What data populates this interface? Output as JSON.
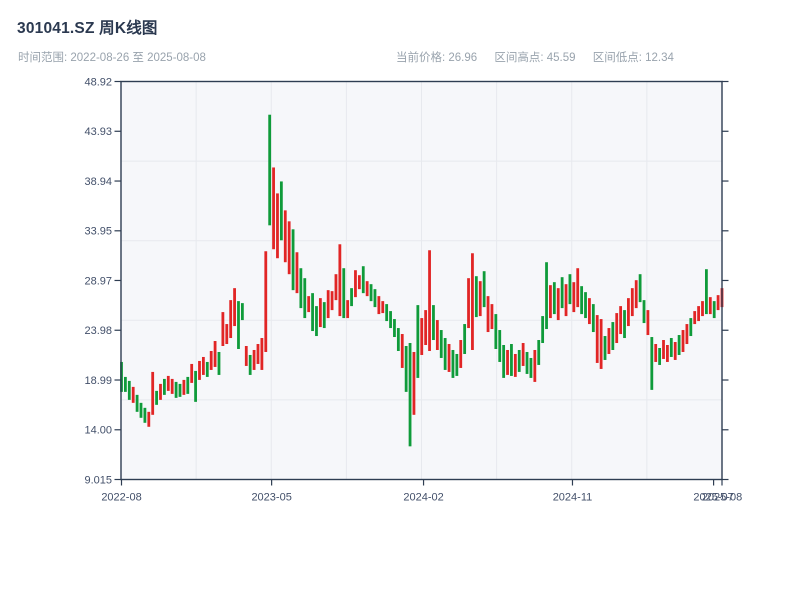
{
  "header": {
    "title": "301041.SZ 周K线图",
    "time_range": "时间范围: 2022-08-26 至 2025-08-08",
    "current_price_label": "当前价格: 26.96",
    "range_high_label": "区间高点: 45.59",
    "range_low_label": "区间低点: 12.34"
  },
  "chart_data": {
    "type": "candlestick",
    "title": "301041.SZ 周K线图",
    "frequency": "weekly",
    "x_start": "2022-08-26",
    "x_end": "2025-08-08",
    "current_price": 26.96,
    "range_high": 45.59,
    "range_low": 12.34,
    "ylim": [
      9.015,
      48.92
    ],
    "grid": "on",
    "colors": {
      "up_red": "#e12525",
      "down_green": "#0f9b3a"
    },
    "y_ticks": [
      {
        "label": "48.92",
        "value": 48.92
      },
      {
        "label": "43.93",
        "value": 43.93
      },
      {
        "label": "38.94",
        "value": 38.94
      },
      {
        "label": "33.95",
        "value": 33.95
      },
      {
        "label": "28.97",
        "value": 28.97
      },
      {
        "label": "23.98",
        "value": 23.98
      },
      {
        "label": "18.99",
        "value": 18.99
      },
      {
        "label": "14.00",
        "value": 14.0
      },
      {
        "label": "9.015",
        "value": 9.015
      }
    ],
    "x_ticks": [
      {
        "label": "2022-08",
        "pos": 0.0
      },
      {
        "label": "2023-05",
        "pos": 0.25
      },
      {
        "label": "2024-02",
        "pos": 0.503
      },
      {
        "label": "2024-11",
        "pos": 0.751
      },
      {
        "label": "2025-07",
        "pos": 0.986
      },
      {
        "label": "2025-08",
        "pos": 1.0
      }
    ],
    "bars": [
      [
        20.8,
        17.8,
        "g"
      ],
      [
        19.3,
        17.8,
        "g"
      ],
      [
        18.9,
        17.0,
        "g"
      ],
      [
        18.3,
        16.7,
        "r"
      ],
      [
        17.5,
        15.8,
        "g"
      ],
      [
        16.7,
        15.2,
        "g"
      ],
      [
        16.2,
        14.7,
        "g"
      ],
      [
        15.8,
        14.3,
        "r"
      ],
      [
        19.8,
        15.5,
        "r"
      ],
      [
        17.9,
        16.5,
        "g"
      ],
      [
        18.6,
        17.0,
        "r"
      ],
      [
        19.1,
        17.5,
        "g"
      ],
      [
        19.4,
        17.9,
        "r"
      ],
      [
        19.1,
        17.6,
        "r"
      ],
      [
        18.8,
        17.2,
        "g"
      ],
      [
        18.6,
        17.3,
        "g"
      ],
      [
        19.0,
        17.5,
        "r"
      ],
      [
        19.3,
        17.6,
        "g"
      ],
      [
        20.6,
        18.7,
        "r"
      ],
      [
        19.9,
        16.8,
        "g"
      ],
      [
        20.9,
        19.0,
        "r"
      ],
      [
        21.3,
        19.5,
        "r"
      ],
      [
        20.8,
        19.3,
        "g"
      ],
      [
        21.9,
        20.0,
        "r"
      ],
      [
        22.9,
        20.3,
        "r"
      ],
      [
        21.8,
        19.5,
        "g"
      ],
      [
        25.8,
        22.4,
        "r"
      ],
      [
        24.6,
        22.6,
        "r"
      ],
      [
        27.0,
        23.2,
        "r"
      ],
      [
        28.2,
        24.4,
        "r"
      ],
      [
        26.9,
        22.1,
        "g"
      ],
      [
        26.7,
        25.0,
        "g"
      ],
      [
        22.4,
        20.4,
        "r"
      ],
      [
        21.5,
        19.5,
        "g"
      ],
      [
        22.0,
        20.0,
        "r"
      ],
      [
        22.6,
        20.6,
        "r"
      ],
      [
        23.2,
        20.0,
        "r"
      ],
      [
        31.9,
        21.8,
        "r"
      ],
      [
        45.59,
        34.5,
        "g"
      ],
      [
        40.3,
        32.1,
        "r"
      ],
      [
        37.7,
        31.2,
        "r"
      ],
      [
        38.9,
        33.0,
        "g"
      ],
      [
        36.0,
        30.8,
        "r"
      ],
      [
        34.9,
        29.6,
        "r"
      ],
      [
        34.1,
        28.0,
        "g"
      ],
      [
        31.8,
        27.7,
        "r"
      ],
      [
        30.2,
        26.2,
        "g"
      ],
      [
        29.2,
        25.2,
        "g"
      ],
      [
        27.4,
        25.8,
        "r"
      ],
      [
        27.7,
        23.9,
        "g"
      ],
      [
        26.4,
        23.4,
        "g"
      ],
      [
        27.2,
        24.3,
        "r"
      ],
      [
        26.8,
        24.2,
        "g"
      ],
      [
        28.0,
        25.2,
        "r"
      ],
      [
        27.9,
        26.0,
        "r"
      ],
      [
        29.6,
        27.0,
        "r"
      ],
      [
        32.6,
        25.4,
        "r"
      ],
      [
        30.2,
        25.2,
        "g"
      ],
      [
        27.0,
        25.2,
        "r"
      ],
      [
        28.2,
        26.4,
        "g"
      ],
      [
        30.0,
        27.3,
        "r"
      ],
      [
        29.5,
        28.1,
        "r"
      ],
      [
        30.4,
        27.7,
        "g"
      ],
      [
        28.9,
        27.4,
        "r"
      ],
      [
        28.6,
        26.9,
        "g"
      ],
      [
        28.1,
        26.3,
        "g"
      ],
      [
        27.4,
        25.6,
        "r"
      ],
      [
        26.9,
        25.7,
        "r"
      ],
      [
        26.6,
        24.9,
        "g"
      ],
      [
        25.9,
        24.2,
        "g"
      ],
      [
        25.1,
        23.3,
        "g"
      ],
      [
        24.2,
        21.9,
        "g"
      ],
      [
        23.6,
        20.2,
        "r"
      ],
      [
        22.4,
        17.8,
        "g"
      ],
      [
        22.7,
        12.34,
        "g"
      ],
      [
        21.8,
        15.5,
        "r"
      ],
      [
        26.5,
        19.2,
        "g"
      ],
      [
        25.2,
        21.5,
        "r"
      ],
      [
        26.0,
        22.5,
        "r"
      ],
      [
        32.0,
        21.9,
        "r"
      ],
      [
        26.5,
        23.0,
        "g"
      ],
      [
        25.0,
        22.0,
        "r"
      ],
      [
        24.0,
        21.2,
        "g"
      ],
      [
        23.2,
        20.0,
        "g"
      ],
      [
        22.6,
        19.8,
        "r"
      ],
      [
        22.0,
        19.2,
        "g"
      ],
      [
        21.6,
        19.4,
        "g"
      ],
      [
        23.0,
        20.2,
        "r"
      ],
      [
        24.6,
        21.6,
        "g"
      ],
      [
        29.2,
        24.2,
        "r"
      ],
      [
        31.7,
        22.0,
        "r"
      ],
      [
        29.4,
        25.3,
        "g"
      ],
      [
        28.9,
        25.4,
        "r"
      ],
      [
        29.9,
        26.3,
        "g"
      ],
      [
        27.4,
        23.8,
        "r"
      ],
      [
        26.6,
        24.1,
        "r"
      ],
      [
        25.6,
        22.1,
        "g"
      ],
      [
        24.0,
        20.8,
        "g"
      ],
      [
        22.5,
        19.2,
        "g"
      ],
      [
        22.0,
        19.5,
        "r"
      ],
      [
        22.6,
        19.4,
        "g"
      ],
      [
        21.6,
        19.3,
        "r"
      ],
      [
        22.0,
        19.8,
        "g"
      ],
      [
        22.7,
        20.4,
        "r"
      ],
      [
        21.8,
        19.6,
        "g"
      ],
      [
        21.2,
        19.2,
        "g"
      ],
      [
        22.0,
        18.8,
        "r"
      ],
      [
        23.0,
        20.5,
        "g"
      ],
      [
        25.4,
        22.7,
        "g"
      ],
      [
        30.8,
        24.1,
        "g"
      ],
      [
        28.5,
        25.2,
        "r"
      ],
      [
        28.8,
        25.6,
        "g"
      ],
      [
        28.2,
        25.0,
        "r"
      ],
      [
        29.3,
        26.2,
        "g"
      ],
      [
        28.6,
        25.4,
        "r"
      ],
      [
        29.6,
        26.6,
        "g"
      ],
      [
        28.8,
        25.8,
        "r"
      ],
      [
        30.2,
        26.3,
        "r"
      ],
      [
        28.4,
        25.6,
        "g"
      ],
      [
        27.8,
        25.2,
        "g"
      ],
      [
        27.2,
        24.6,
        "r"
      ],
      [
        26.6,
        23.8,
        "g"
      ],
      [
        25.5,
        20.7,
        "r"
      ],
      [
        25.1,
        20.1,
        "r"
      ],
      [
        23.4,
        21.0,
        "g"
      ],
      [
        24.2,
        21.6,
        "r"
      ],
      [
        24.8,
        22.0,
        "g"
      ],
      [
        25.7,
        22.7,
        "r"
      ],
      [
        26.4,
        23.6,
        "r"
      ],
      [
        26.0,
        23.2,
        "g"
      ],
      [
        27.2,
        24.4,
        "r"
      ],
      [
        28.2,
        25.4,
        "r"
      ],
      [
        29.0,
        26.2,
        "r"
      ],
      [
        29.6,
        26.8,
        "g"
      ],
      [
        27.0,
        24.7,
        "g"
      ],
      [
        26.0,
        23.5,
        "r"
      ],
      [
        23.3,
        18.0,
        "g"
      ],
      [
        22.6,
        20.8,
        "r"
      ],
      [
        22.2,
        20.5,
        "g"
      ],
      [
        23.0,
        21.1,
        "r"
      ],
      [
        22.5,
        20.8,
        "r"
      ],
      [
        23.2,
        21.3,
        "g"
      ],
      [
        22.8,
        21.0,
        "r"
      ],
      [
        23.5,
        21.5,
        "g"
      ],
      [
        24.0,
        21.8,
        "r"
      ],
      [
        24.6,
        22.6,
        "r"
      ],
      [
        25.2,
        23.4,
        "g"
      ],
      [
        25.9,
        24.6,
        "r"
      ],
      [
        26.4,
        24.9,
        "r"
      ],
      [
        26.9,
        25.4,
        "r"
      ],
      [
        30.1,
        25.6,
        "g"
      ],
      [
        27.3,
        25.6,
        "r"
      ],
      [
        26.9,
        25.2,
        "g"
      ],
      [
        27.5,
        26.0,
        "r"
      ],
      [
        28.2,
        26.3,
        "r"
      ]
    ]
  },
  "style": {
    "plot_bg": "#f6f7fa",
    "grid_color": "#e7e9ee",
    "axis_color": "#2e3d52",
    "tick_text_color": "#43506a"
  }
}
